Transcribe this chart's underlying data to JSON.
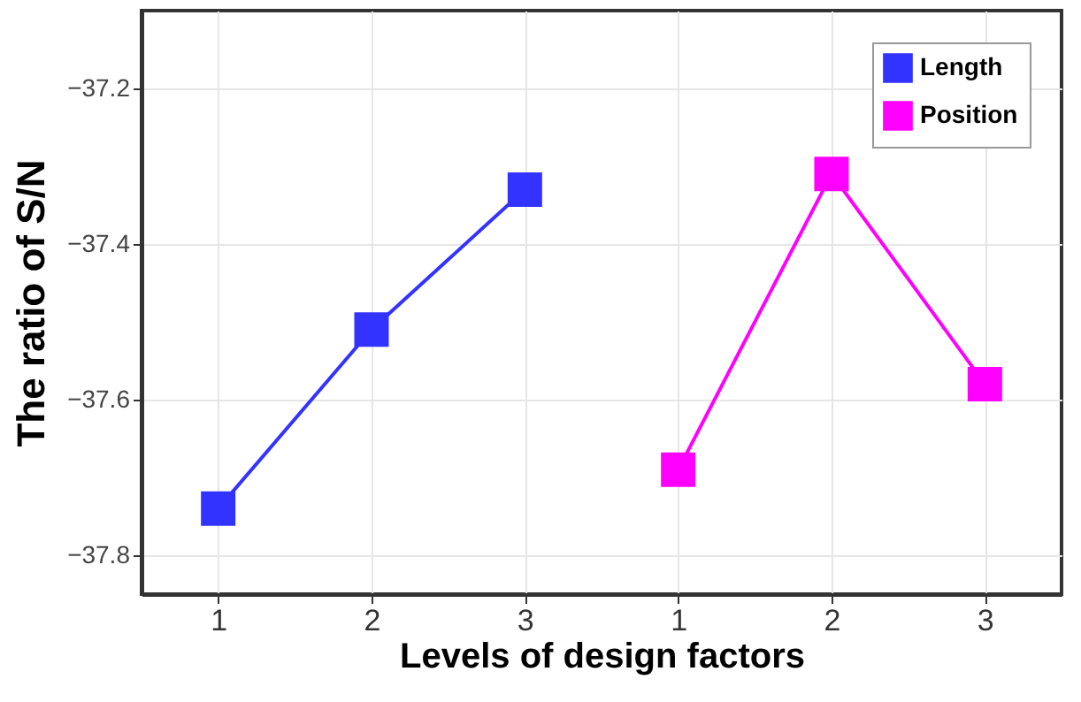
{
  "chart_data": {
    "type": "line",
    "xlabel": "Levels of design factors",
    "ylabel": "The ratio of S/N",
    "categories": [
      "1",
      "2",
      "3",
      "1",
      "2",
      "3"
    ],
    "series": [
      {
        "name": "Length",
        "color": "#3333ff",
        "values": [
          -37.74,
          -37.51,
          -37.33,
          null,
          null,
          null
        ]
      },
      {
        "name": "Position",
        "color": "#ff00ff",
        "values": [
          null,
          null,
          null,
          -37.69,
          -37.31,
          -37.58
        ]
      }
    ],
    "ylim": [
      -37.85,
      -37.1
    ],
    "yticks": [
      -37.8,
      -37.6,
      -37.4,
      -37.2
    ],
    "grid": true,
    "legend": "top right",
    "marker": "square",
    "line_style": "solid"
  }
}
